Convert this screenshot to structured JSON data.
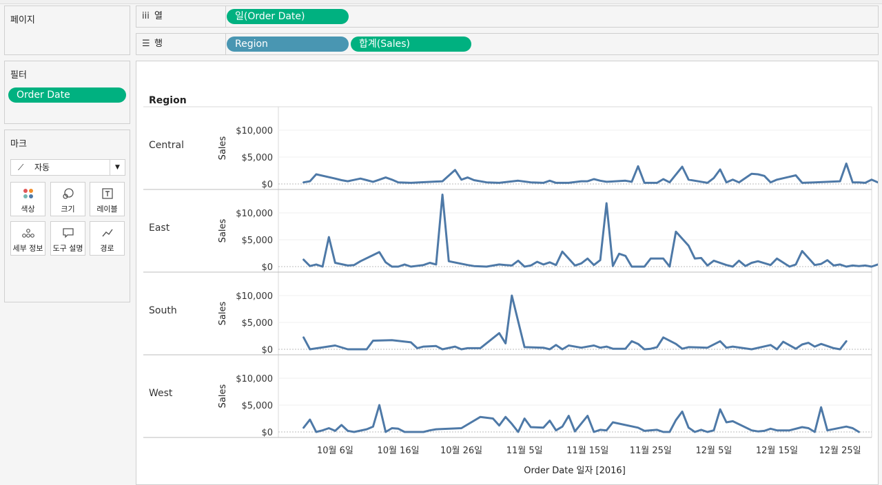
{
  "panels": {
    "pages": {
      "title": "페이지"
    },
    "filters": {
      "title": "필터",
      "pills": [
        "Order Date"
      ]
    },
    "marks": {
      "title": "마크",
      "type": {
        "label": "자동",
        "icon": "line-chart-icon"
      },
      "buttons": [
        {
          "label": "색상",
          "icon": "color-dots-icon"
        },
        {
          "label": "크기",
          "icon": "size-circles-icon"
        },
        {
          "label": "레이블",
          "icon": "label-t-icon"
        },
        {
          "label": "세부 정보",
          "icon": "detail-dots-icon"
        },
        {
          "label": "도구 설명",
          "icon": "tooltip-bubble-icon"
        },
        {
          "label": "경로",
          "icon": "path-line-icon"
        }
      ]
    }
  },
  "shelves": {
    "columns": {
      "label": "열",
      "icon": "columns-icon",
      "pills": [
        "일(Order Date)"
      ]
    },
    "rows": {
      "label": "행",
      "icon": "rows-icon",
      "pills": [
        "Region",
        "합계(Sales)"
      ]
    }
  },
  "chart_data": {
    "type": "line",
    "header": "Region",
    "ylabel": "Sales",
    "xlabel": "Order Date 일자 [2016]",
    "x_tick_labels": [
      "10월 6일",
      "10월 16일",
      "10월 26일",
      "11월 5일",
      "11월 15일",
      "11월 25일",
      "12월 5일",
      "12월 15일",
      "12월 25일"
    ],
    "y_tick_labels": [
      "$0",
      "$5,000",
      "$10,000"
    ],
    "ylim": [
      0,
      14500
    ],
    "xlim": [
      "2016-09-27",
      "2016-12-31"
    ],
    "grid": true,
    "line_color": "#4e79a7",
    "series": [
      {
        "name": "Central",
        "points": [
          [
            "2016-10-01",
            300
          ],
          [
            "2016-10-02",
            500
          ],
          [
            "2016-10-03",
            1800
          ],
          [
            "2016-10-06",
            1000
          ],
          [
            "2016-10-07",
            700
          ],
          [
            "2016-10-08",
            500
          ],
          [
            "2016-10-10",
            1000
          ],
          [
            "2016-10-11",
            700
          ],
          [
            "2016-10-12",
            400
          ],
          [
            "2016-10-13",
            800
          ],
          [
            "2016-10-14",
            1200
          ],
          [
            "2016-10-15",
            800
          ],
          [
            "2016-10-16",
            300
          ],
          [
            "2016-10-18",
            200
          ],
          [
            "2016-10-23",
            500
          ],
          [
            "2016-10-25",
            2600
          ],
          [
            "2016-10-26",
            800
          ],
          [
            "2016-10-27",
            1200
          ],
          [
            "2016-10-28",
            700
          ],
          [
            "2016-10-30",
            300
          ],
          [
            "2016-11-01",
            200
          ],
          [
            "2016-11-04",
            600
          ],
          [
            "2016-11-06",
            300
          ],
          [
            "2016-11-08",
            200
          ],
          [
            "2016-11-09",
            600
          ],
          [
            "2016-11-10",
            200
          ],
          [
            "2016-11-12",
            200
          ],
          [
            "2016-11-14",
            500
          ],
          [
            "2016-11-15",
            500
          ],
          [
            "2016-11-16",
            900
          ],
          [
            "2016-11-17",
            600
          ],
          [
            "2016-11-18",
            400
          ],
          [
            "2016-11-21",
            600
          ],
          [
            "2016-11-22",
            400
          ],
          [
            "2016-11-23",
            3300
          ],
          [
            "2016-11-24",
            200
          ],
          [
            "2016-11-26",
            200
          ],
          [
            "2016-11-27",
            900
          ],
          [
            "2016-11-28",
            300
          ],
          [
            "2016-11-30",
            3200
          ],
          [
            "2016-12-01",
            800
          ],
          [
            "2016-12-04",
            200
          ],
          [
            "2016-12-05",
            1100
          ],
          [
            "2016-12-06",
            2700
          ],
          [
            "2016-12-07",
            300
          ],
          [
            "2016-12-08",
            800
          ],
          [
            "2016-12-09",
            300
          ],
          [
            "2016-12-11",
            1900
          ],
          [
            "2016-12-12",
            1800
          ],
          [
            "2016-12-13",
            1500
          ],
          [
            "2016-12-14",
            300
          ],
          [
            "2016-12-15",
            800
          ],
          [
            "2016-12-18",
            1600
          ],
          [
            "2016-12-19",
            200
          ],
          [
            "2016-12-21",
            300
          ],
          [
            "2016-12-25",
            500
          ],
          [
            "2016-12-26",
            3800
          ],
          [
            "2016-12-27",
            300
          ],
          [
            "2016-12-28",
            300
          ],
          [
            "2016-12-29",
            200
          ],
          [
            "2016-12-30",
            800
          ],
          [
            "2016-12-31",
            300
          ]
        ]
      },
      {
        "name": "East",
        "points": [
          [
            "2016-10-01",
            1300
          ],
          [
            "2016-10-02",
            100
          ],
          [
            "2016-10-03",
            400
          ],
          [
            "2016-10-04",
            0
          ],
          [
            "2016-10-05",
            5500
          ],
          [
            "2016-10-06",
            700
          ],
          [
            "2016-10-08",
            200
          ],
          [
            "2016-10-09",
            300
          ],
          [
            "2016-10-10",
            1000
          ],
          [
            "2016-10-13",
            2700
          ],
          [
            "2016-10-14",
            800
          ],
          [
            "2016-10-15",
            0
          ],
          [
            "2016-10-16",
            0
          ],
          [
            "2016-10-17",
            400
          ],
          [
            "2016-10-18",
            0
          ],
          [
            "2016-10-20",
            300
          ],
          [
            "2016-10-21",
            700
          ],
          [
            "2016-10-22",
            400
          ],
          [
            "2016-10-23",
            13400
          ],
          [
            "2016-10-24",
            1000
          ],
          [
            "2016-10-27",
            300
          ],
          [
            "2016-10-28",
            100
          ],
          [
            "2016-10-30",
            0
          ],
          [
            "2016-11-01",
            400
          ],
          [
            "2016-11-02",
            300
          ],
          [
            "2016-11-03",
            200
          ],
          [
            "2016-11-04",
            1100
          ],
          [
            "2016-11-05",
            0
          ],
          [
            "2016-11-06",
            200
          ],
          [
            "2016-11-07",
            900
          ],
          [
            "2016-11-08",
            400
          ],
          [
            "2016-11-09",
            800
          ],
          [
            "2016-11-10",
            300
          ],
          [
            "2016-11-11",
            2800
          ],
          [
            "2016-11-13",
            200
          ],
          [
            "2016-11-14",
            600
          ],
          [
            "2016-11-15",
            1500
          ],
          [
            "2016-11-16",
            300
          ],
          [
            "2016-11-17",
            1200
          ],
          [
            "2016-11-18",
            11800
          ],
          [
            "2016-11-19",
            100
          ],
          [
            "2016-11-20",
            2400
          ],
          [
            "2016-11-21",
            2000
          ],
          [
            "2016-11-22",
            0
          ],
          [
            "2016-11-24",
            0
          ],
          [
            "2016-11-25",
            1500
          ],
          [
            "2016-11-27",
            1500
          ],
          [
            "2016-11-28",
            0
          ],
          [
            "2016-11-29",
            6500
          ],
          [
            "2016-12-01",
            3900
          ],
          [
            "2016-12-02",
            1500
          ],
          [
            "2016-12-03",
            1600
          ],
          [
            "2016-12-04",
            200
          ],
          [
            "2016-12-05",
            1100
          ],
          [
            "2016-12-07",
            300
          ],
          [
            "2016-12-08",
            0
          ],
          [
            "2016-12-09",
            1100
          ],
          [
            "2016-12-10",
            100
          ],
          [
            "2016-12-11",
            700
          ],
          [
            "2016-12-12",
            1000
          ],
          [
            "2016-12-14",
            300
          ],
          [
            "2016-12-15",
            1500
          ],
          [
            "2016-12-17",
            0
          ],
          [
            "2016-12-18",
            400
          ],
          [
            "2016-12-19",
            2900
          ],
          [
            "2016-12-21",
            300
          ],
          [
            "2016-12-22",
            500
          ],
          [
            "2016-12-23",
            1200
          ],
          [
            "2016-12-24",
            200
          ],
          [
            "2016-12-25",
            400
          ],
          [
            "2016-12-26",
            0
          ],
          [
            "2016-12-27",
            200
          ],
          [
            "2016-12-28",
            100
          ],
          [
            "2016-12-29",
            200
          ],
          [
            "2016-12-30",
            0
          ],
          [
            "2016-12-31",
            400
          ]
        ]
      },
      {
        "name": "South",
        "points": [
          [
            "2016-10-01",
            2200
          ],
          [
            "2016-10-02",
            0
          ],
          [
            "2016-10-06",
            700
          ],
          [
            "2016-10-08",
            0
          ],
          [
            "2016-10-11",
            0
          ],
          [
            "2016-10-12",
            1600
          ],
          [
            "2016-10-15",
            1700
          ],
          [
            "2016-10-18",
            1300
          ],
          [
            "2016-10-19",
            200
          ],
          [
            "2016-10-20",
            500
          ],
          [
            "2016-10-22",
            600
          ],
          [
            "2016-10-23",
            0
          ],
          [
            "2016-10-25",
            500
          ],
          [
            "2016-10-26",
            0
          ],
          [
            "2016-10-27",
            200
          ],
          [
            "2016-10-29",
            200
          ],
          [
            "2016-11-01",
            3000
          ],
          [
            "2016-11-02",
            1100
          ],
          [
            "2016-11-03",
            10000
          ],
          [
            "2016-11-05",
            400
          ],
          [
            "2016-11-08",
            300
          ],
          [
            "2016-11-09",
            0
          ],
          [
            "2016-11-10",
            800
          ],
          [
            "2016-11-11",
            0
          ],
          [
            "2016-11-12",
            700
          ],
          [
            "2016-11-14",
            300
          ],
          [
            "2016-11-16",
            700
          ],
          [
            "2016-11-17",
            300
          ],
          [
            "2016-11-18",
            500
          ],
          [
            "2016-11-19",
            100
          ],
          [
            "2016-11-21",
            100
          ],
          [
            "2016-11-22",
            1500
          ],
          [
            "2016-11-23",
            1000
          ],
          [
            "2016-11-24",
            0
          ],
          [
            "2016-11-25",
            100
          ],
          [
            "2016-11-26",
            400
          ],
          [
            "2016-11-27",
            2200
          ],
          [
            "2016-11-29",
            1000
          ],
          [
            "2016-11-30",
            100
          ],
          [
            "2016-12-01",
            400
          ],
          [
            "2016-12-04",
            300
          ],
          [
            "2016-12-06",
            1500
          ],
          [
            "2016-12-07",
            300
          ],
          [
            "2016-12-08",
            500
          ],
          [
            "2016-12-11",
            0
          ],
          [
            "2016-12-14",
            800
          ],
          [
            "2016-12-15",
            0
          ],
          [
            "2016-12-16",
            1400
          ],
          [
            "2016-12-18",
            100
          ],
          [
            "2016-12-19",
            900
          ],
          [
            "2016-12-20",
            1200
          ],
          [
            "2016-12-21",
            500
          ],
          [
            "2016-12-22",
            1000
          ],
          [
            "2016-12-24",
            200
          ],
          [
            "2016-12-25",
            0
          ],
          [
            "2016-12-26",
            1500
          ]
        ]
      },
      {
        "name": "West",
        "points": [
          [
            "2016-10-01",
            800
          ],
          [
            "2016-10-02",
            2300
          ],
          [
            "2016-10-03",
            0
          ],
          [
            "2016-10-04",
            300
          ],
          [
            "2016-10-05",
            700
          ],
          [
            "2016-10-06",
            200
          ],
          [
            "2016-10-07",
            1300
          ],
          [
            "2016-10-08",
            200
          ],
          [
            "2016-10-09",
            0
          ],
          [
            "2016-10-11",
            500
          ],
          [
            "2016-10-12",
            1000
          ],
          [
            "2016-10-13",
            5000
          ],
          [
            "2016-10-14",
            0
          ],
          [
            "2016-10-15",
            700
          ],
          [
            "2016-10-16",
            600
          ],
          [
            "2016-10-17",
            0
          ],
          [
            "2016-10-20",
            0
          ],
          [
            "2016-10-21",
            300
          ],
          [
            "2016-10-22",
            500
          ],
          [
            "2016-10-26",
            700
          ],
          [
            "2016-10-29",
            2800
          ],
          [
            "2016-10-31",
            2500
          ],
          [
            "2016-11-01",
            1200
          ],
          [
            "2016-11-02",
            2800
          ],
          [
            "2016-11-03",
            1500
          ],
          [
            "2016-11-04",
            0
          ],
          [
            "2016-11-05",
            2500
          ],
          [
            "2016-11-06",
            900
          ],
          [
            "2016-11-08",
            800
          ],
          [
            "2016-11-09",
            2100
          ],
          [
            "2016-11-10",
            300
          ],
          [
            "2016-11-11",
            1000
          ],
          [
            "2016-11-12",
            3000
          ],
          [
            "2016-11-13",
            100
          ],
          [
            "2016-11-15",
            3000
          ],
          [
            "2016-11-16",
            0
          ],
          [
            "2016-11-17",
            400
          ],
          [
            "2016-11-18",
            300
          ],
          [
            "2016-11-19",
            1800
          ],
          [
            "2016-11-23",
            800
          ],
          [
            "2016-11-24",
            200
          ],
          [
            "2016-11-26",
            400
          ],
          [
            "2016-11-27",
            0
          ],
          [
            "2016-11-28",
            0
          ],
          [
            "2016-11-29",
            2200
          ],
          [
            "2016-11-30",
            3800
          ],
          [
            "2016-12-01",
            800
          ],
          [
            "2016-12-02",
            0
          ],
          [
            "2016-12-03",
            400
          ],
          [
            "2016-12-04",
            0
          ],
          [
            "2016-12-05",
            300
          ],
          [
            "2016-12-06",
            4200
          ],
          [
            "2016-12-07",
            1800
          ],
          [
            "2016-12-08",
            2000
          ],
          [
            "2016-12-11",
            300
          ],
          [
            "2016-12-12",
            100
          ],
          [
            "2016-12-13",
            200
          ],
          [
            "2016-12-14",
            600
          ],
          [
            "2016-12-15",
            300
          ],
          [
            "2016-12-17",
            300
          ],
          [
            "2016-12-19",
            900
          ],
          [
            "2016-12-20",
            700
          ],
          [
            "2016-12-21",
            0
          ],
          [
            "2016-12-22",
            4600
          ],
          [
            "2016-12-23",
            300
          ],
          [
            "2016-12-26",
            1000
          ],
          [
            "2016-12-27",
            700
          ],
          [
            "2016-12-28",
            0
          ]
        ]
      }
    ]
  }
}
